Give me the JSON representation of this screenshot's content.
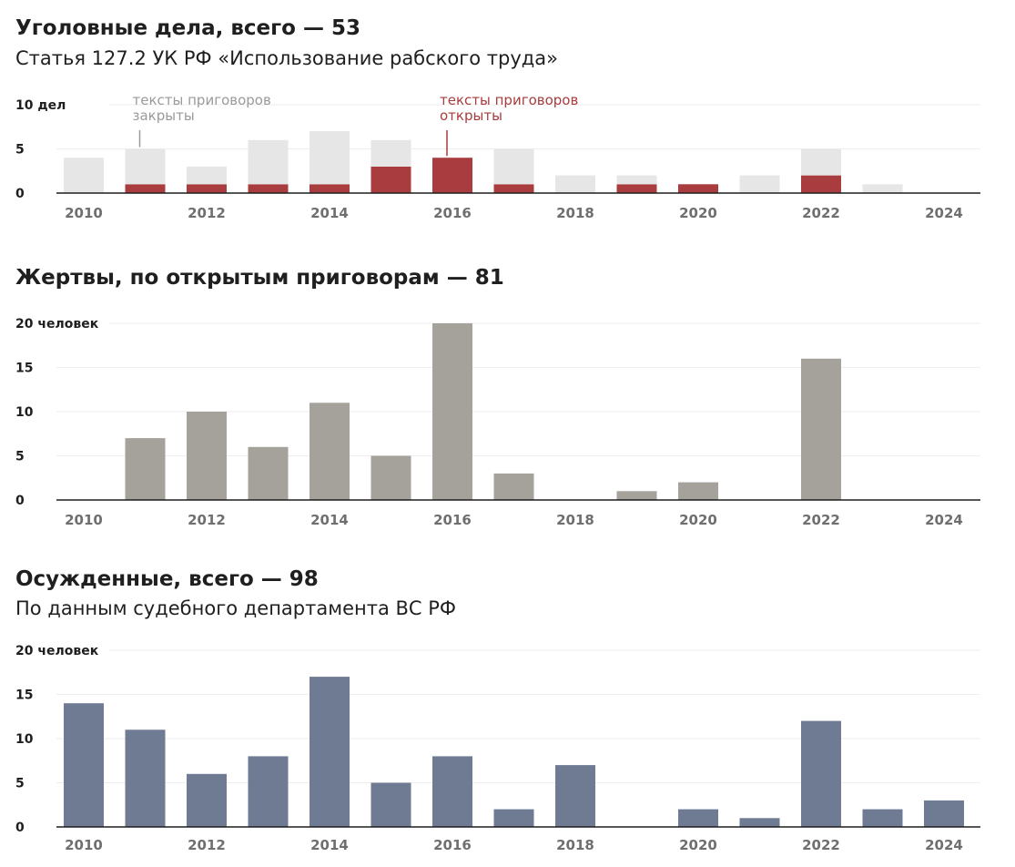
{
  "chart_data": [
    {
      "type": "bar",
      "stacked": true,
      "title": "Уголовные дела, всего — 53",
      "subtitle": "Статья 127.2 УК РФ «Использование рабского труда»",
      "categories": [
        2010,
        2011,
        2012,
        2013,
        2014,
        2015,
        2016,
        2017,
        2018,
        2019,
        2020,
        2021,
        2022,
        2023,
        2024
      ],
      "series": [
        {
          "name": "тексты приговоров открыты",
          "color": "#a83c3e",
          "values": [
            0,
            1,
            1,
            1,
            1,
            3,
            4,
            1,
            0,
            1,
            1,
            0,
            2,
            0,
            0
          ]
        },
        {
          "name": "тексты приговоров закрыты",
          "color": "#e6e6e6",
          "values": [
            4,
            4,
            2,
            5,
            6,
            3,
            0,
            4,
            2,
            1,
            0,
            2,
            3,
            1,
            0
          ]
        }
      ],
      "ylim": [
        0,
        10
      ],
      "yticks": [
        0,
        5,
        10
      ],
      "ytick_labels": [
        "0",
        "5",
        "10 дел"
      ],
      "xticks": [
        2010,
        2012,
        2014,
        2016,
        2018,
        2020,
        2022,
        2024
      ],
      "annotations": [
        {
          "text": [
            "тексты приговоров",
            "закрыты"
          ],
          "color": "#9a9a9a",
          "year": 2011
        },
        {
          "text": [
            "тексты приговоров",
            "открыты"
          ],
          "color": "#a83c3e",
          "year": 2016
        }
      ]
    },
    {
      "type": "bar",
      "title": "Жертвы, по открытым приговорам — 81",
      "categories": [
        2010,
        2011,
        2012,
        2013,
        2014,
        2015,
        2016,
        2017,
        2018,
        2019,
        2020,
        2021,
        2022,
        2023,
        2024
      ],
      "series": [
        {
          "name": "Жертвы",
          "color": "#a5a19b",
          "values": [
            0,
            7,
            10,
            6,
            11,
            5,
            20,
            3,
            0,
            1,
            2,
            0,
            16,
            0,
            0
          ]
        }
      ],
      "ylim": [
        0,
        20
      ],
      "yticks": [
        0,
        5,
        10,
        15,
        20
      ],
      "ytick_labels": [
        "0",
        "5",
        "10",
        "15",
        "20 человек"
      ],
      "xticks": [
        2010,
        2012,
        2014,
        2016,
        2018,
        2020,
        2022,
        2024
      ]
    },
    {
      "type": "bar",
      "title": "Осужденные, всего — 98",
      "subtitle": "По данным судебного департамента ВС РФ",
      "categories": [
        2010,
        2011,
        2012,
        2013,
        2014,
        2015,
        2016,
        2017,
        2018,
        2019,
        2020,
        2021,
        2022,
        2023,
        2024
      ],
      "series": [
        {
          "name": "Осужденные",
          "color": "#6e7b92",
          "values": [
            14,
            11,
            6,
            8,
            17,
            5,
            8,
            2,
            7,
            0,
            2,
            1,
            12,
            2,
            3
          ]
        }
      ],
      "ylim": [
        0,
        20
      ],
      "yticks": [
        0,
        5,
        10,
        15,
        20
      ],
      "ytick_labels": [
        "0",
        "5",
        "10",
        "15",
        "20 человек"
      ],
      "xticks": [
        2010,
        2012,
        2014,
        2016,
        2018,
        2020,
        2022,
        2024
      ]
    }
  ]
}
